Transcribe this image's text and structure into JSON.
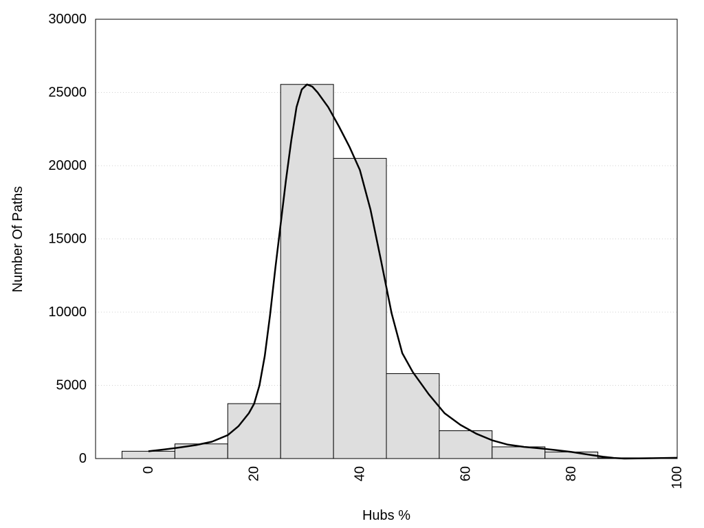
{
  "chart_data": {
    "type": "bar",
    "title": "",
    "xlabel": "Hubs %",
    "ylabel": "Number Of Paths",
    "xlim": [
      -10,
      100
    ],
    "ylim": [
      0,
      30000
    ],
    "grid": true,
    "x_ticks": [
      0,
      20,
      40,
      60,
      80,
      100
    ],
    "y_ticks": [
      0,
      5000,
      10000,
      15000,
      20000,
      25000,
      30000
    ],
    "bin_width": 10,
    "bins": [
      {
        "center": 0,
        "value": 500
      },
      {
        "center": 10,
        "value": 1000
      },
      {
        "center": 20,
        "value": 3750
      },
      {
        "center": 30,
        "value": 25550
      },
      {
        "center": 40,
        "value": 20500
      },
      {
        "center": 50,
        "value": 5800
      },
      {
        "center": 60,
        "value": 1900
      },
      {
        "center": 70,
        "value": 800
      },
      {
        "center": 80,
        "value": 450
      },
      {
        "center": 90,
        "value": 50
      }
    ],
    "curve": [
      [
        0,
        500
      ],
      [
        3,
        620
      ],
      [
        6,
        760
      ],
      [
        9,
        920
      ],
      [
        12,
        1150
      ],
      [
        15,
        1600
      ],
      [
        17,
        2200
      ],
      [
        19,
        3100
      ],
      [
        20,
        3750
      ],
      [
        21,
        5000
      ],
      [
        22,
        7000
      ],
      [
        23,
        9800
      ],
      [
        24,
        13000
      ],
      [
        25,
        16000
      ],
      [
        26,
        19000
      ],
      [
        27,
        21700
      ],
      [
        28,
        24000
      ],
      [
        29,
        25200
      ],
      [
        30,
        25550
      ],
      [
        31,
        25400
      ],
      [
        32,
        25000
      ],
      [
        34,
        24000
      ],
      [
        36,
        22700
      ],
      [
        38,
        21300
      ],
      [
        40,
        19700
      ],
      [
        42,
        17000
      ],
      [
        44,
        13500
      ],
      [
        46,
        9900
      ],
      [
        48,
        7200
      ],
      [
        50,
        5900
      ],
      [
        53,
        4400
      ],
      [
        56,
        3100
      ],
      [
        59,
        2300
      ],
      [
        62,
        1700
      ],
      [
        65,
        1250
      ],
      [
        68,
        950
      ],
      [
        71,
        800
      ],
      [
        74,
        700
      ],
      [
        77,
        580
      ],
      [
        80,
        450
      ],
      [
        83,
        280
      ],
      [
        86,
        120
      ],
      [
        88,
        40
      ],
      [
        90,
        0
      ],
      [
        94,
        20
      ],
      [
        100,
        50
      ]
    ]
  }
}
